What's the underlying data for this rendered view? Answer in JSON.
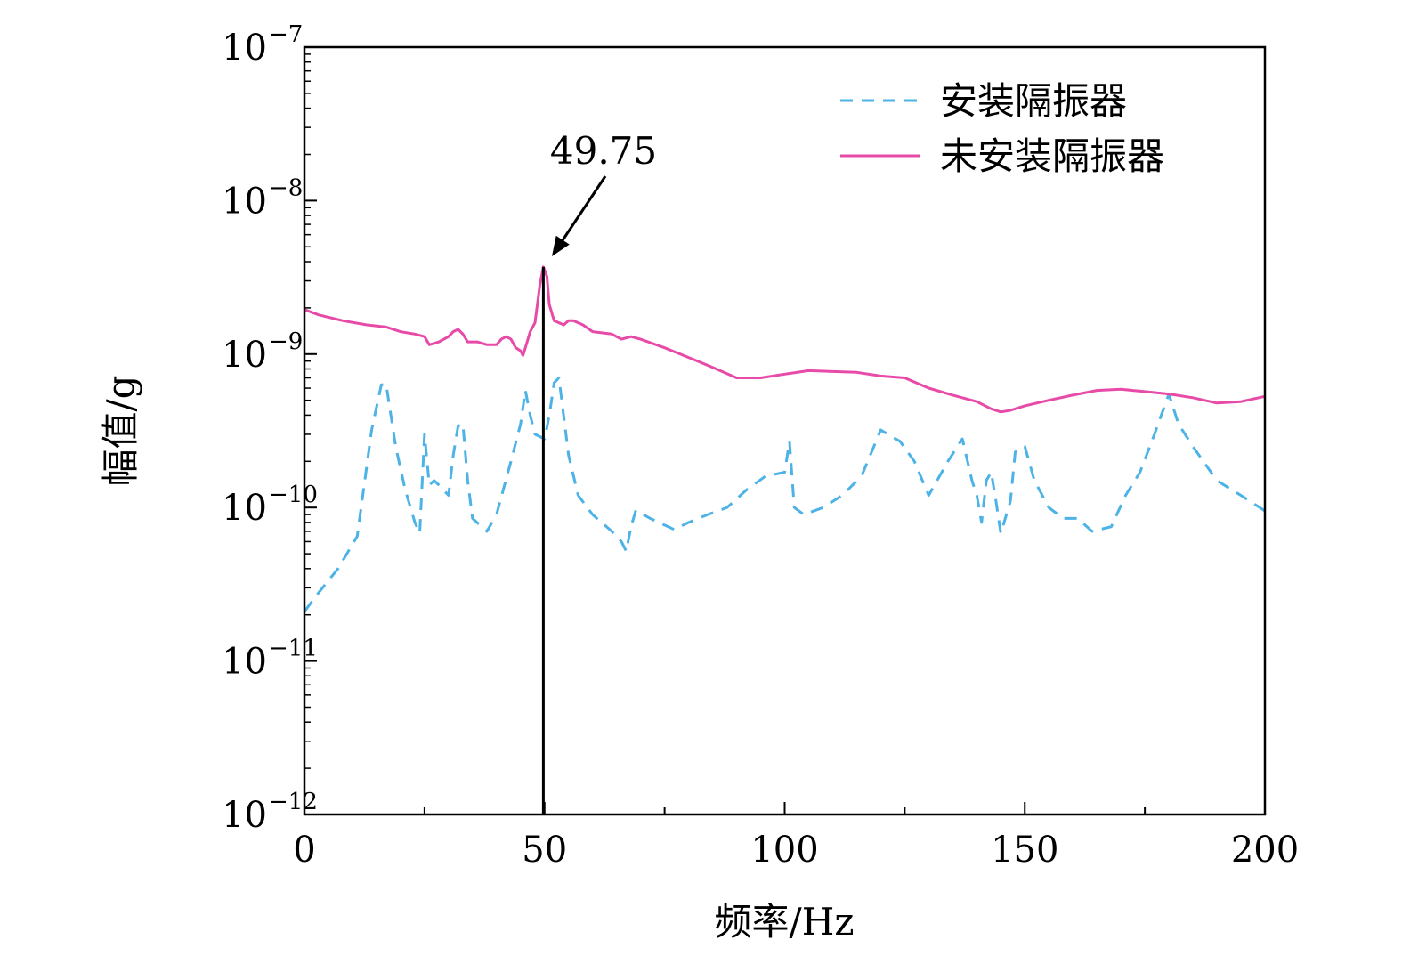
{
  "chart_data": {
    "type": "line",
    "title": "",
    "xlabel": "频率/Hz",
    "ylabel": "幅值/g",
    "xlim": [
      0,
      200
    ],
    "ylim": [
      1e-12,
      1e-07
    ],
    "yscale": "log",
    "grid": false,
    "legend_position": "top-right",
    "xticks": [
      "0",
      "50",
      "100",
      "150",
      "200"
    ],
    "yticks": [
      {
        "base": "10",
        "exp": "−7"
      },
      {
        "base": "10",
        "exp": "−8"
      },
      {
        "base": "10",
        "exp": "−9"
      },
      {
        "base": "10",
        "exp": "−10"
      },
      {
        "base": "10",
        "exp": "−11"
      },
      {
        "base": "10",
        "exp": "−12"
      }
    ],
    "annotation": {
      "text": "49.75",
      "x": 49.75
    },
    "series": [
      {
        "name": "安装隔振器",
        "style": "dashed",
        "color": "#4db3e6",
        "x": [
          0,
          3,
          7,
          11,
          14,
          16,
          17,
          19,
          21,
          23,
          24,
          25,
          26,
          27,
          28,
          30,
          31,
          32,
          33,
          34,
          35,
          38,
          40,
          43,
          45,
          46,
          47,
          48,
          50,
          51,
          52,
          53,
          55,
          57,
          60,
          64,
          66,
          67,
          68,
          69,
          72,
          77,
          80,
          84,
          88,
          92,
          96,
          100,
          101,
          102,
          104,
          108,
          112,
          116,
          120,
          124,
          127,
          130,
          134,
          137,
          139,
          140,
          141,
          142,
          143,
          144,
          145,
          147,
          148,
          150,
          152,
          155,
          158,
          161,
          164,
          168,
          171,
          174,
          177,
          180,
          182,
          185,
          190,
          195,
          200
        ],
        "y": [
          2.1e-11,
          2.8e-11,
          4e-11,
          6.5e-11,
          3.2e-10,
          6.3e-10,
          6.4e-10,
          2.5e-10,
          1.3e-10,
          8e-11,
          6.8e-11,
          3e-10,
          1.4e-10,
          1.5e-10,
          1.4e-10,
          1.2e-10,
          2.2e-10,
          3.4e-10,
          3.5e-10,
          1.5e-10,
          8.5e-11,
          7e-11,
          9e-11,
          2e-10,
          3.5e-10,
          5.8e-10,
          4e-10,
          3e-10,
          2.8e-10,
          4e-10,
          6.5e-10,
          7e-10,
          2.2e-10,
          1.2e-10,
          9e-11,
          7e-11,
          6e-11,
          5.2e-11,
          7.5e-11,
          9.6e-11,
          8.5e-11,
          7.2e-11,
          8e-11,
          9e-11,
          1e-10,
          1.3e-10,
          1.6e-10,
          1.7e-10,
          2.7e-10,
          1e-10,
          9e-11,
          1e-10,
          1.2e-10,
          1.6e-10,
          3.2e-10,
          2.7e-10,
          2e-10,
          1.2e-10,
          2e-10,
          2.8e-10,
          1.5e-10,
          1.2e-10,
          8e-11,
          1.5e-10,
          1.7e-10,
          1.1e-10,
          6.8e-11,
          1.1e-10,
          2.3e-10,
          2.5e-10,
          1.5e-10,
          1e-10,
          8.5e-11,
          8.5e-11,
          7e-11,
          7.5e-11,
          1.2e-10,
          1.7e-10,
          3e-10,
          5.5e-10,
          3.5e-10,
          2.5e-10,
          1.5e-10,
          1.2e-10,
          9.5e-11
        ]
      },
      {
        "name": "未安装隔振器",
        "style": "solid",
        "color": "#e84aa8",
        "x": [
          0,
          3,
          8,
          13,
          17,
          20,
          23,
          25,
          26,
          28,
          30,
          31,
          32,
          33,
          34,
          36,
          38,
          40,
          41,
          42,
          43,
          44,
          45,
          45.5,
          46,
          47,
          48,
          49,
          49.75,
          50.5,
          51,
          52,
          54,
          55,
          56,
          58,
          60,
          64,
          66,
          68,
          70,
          75,
          80,
          85,
          90,
          95,
          100,
          105,
          110,
          115,
          120,
          125,
          130,
          135,
          140,
          143,
          145,
          147,
          150,
          155,
          160,
          165,
          170,
          175,
          180,
          185,
          190,
          195,
          200
        ],
        "y": [
          1.95e-09,
          1.8e-09,
          1.65e-09,
          1.55e-09,
          1.5e-09,
          1.4e-09,
          1.35e-09,
          1.3e-09,
          1.15e-09,
          1.2e-09,
          1.3e-09,
          1.4e-09,
          1.45e-09,
          1.35e-09,
          1.2e-09,
          1.2e-09,
          1.15e-09,
          1.15e-09,
          1.25e-09,
          1.3e-09,
          1.25e-09,
          1.1e-09,
          1.05e-09,
          9.8e-10,
          1.1e-09,
          1.4e-09,
          1.6e-09,
          2.8e-09,
          3.7e-09,
          3.2e-09,
          2.1e-09,
          1.65e-09,
          1.55e-09,
          1.65e-09,
          1.65e-09,
          1.55e-09,
          1.4e-09,
          1.35e-09,
          1.25e-09,
          1.3e-09,
          1.25e-09,
          1.1e-09,
          9.5e-10,
          8.2e-10,
          7e-10,
          7e-10,
          7.4e-10,
          7.8e-10,
          7.7e-10,
          7.6e-10,
          7.2e-10,
          7e-10,
          6e-10,
          5.4e-10,
          4.9e-10,
          4.4e-10,
          4.2e-10,
          4.3e-10,
          4.6e-10,
          5e-10,
          5.4e-10,
          5.8e-10,
          5.9e-10,
          5.7e-10,
          5.5e-10,
          5.2e-10,
          4.8e-10,
          4.9e-10,
          5.3e-10
        ]
      }
    ]
  }
}
